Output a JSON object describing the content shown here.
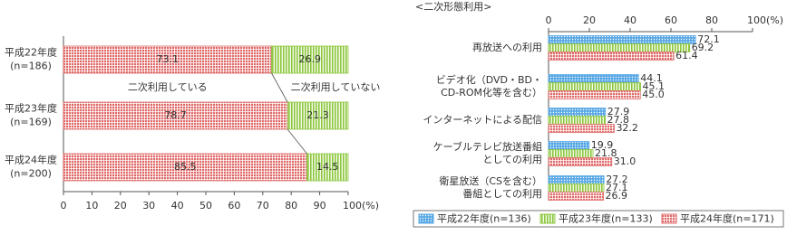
{
  "chart_data": [
    {
      "type": "stacked-bar",
      "categories": [
        [
          "平成22年度",
          "(n=186)"
        ],
        [
          "平成23年度",
          "(n=169)"
        ],
        [
          "平成24年度",
          "(n=200)"
        ]
      ],
      "series": [
        {
          "name": "二次利用している",
          "color": "#e06a6a",
          "pattern": "checks",
          "values": [
            73.1,
            78.7,
            85.5
          ]
        },
        {
          "name": "二次利用していない",
          "color": "#8cc63f",
          "pattern": "stripes",
          "values": [
            26.9,
            21.3,
            14.5
          ]
        }
      ],
      "xlim": [
        0,
        100
      ],
      "xticks": [
        0,
        10,
        20,
        30,
        40,
        50,
        60,
        70,
        80,
        90,
        {
          "value": 100,
          "label": "100(%)"
        }
      ]
    },
    {
      "type": "grouped-bar",
      "title": "<二次形態利用>",
      "categories": [
        [
          "再放送への利用"
        ],
        [
          "ビデオ化（DVD・BD・",
          "CD-ROM化等を含む）"
        ],
        [
          "インターネットによる配信"
        ],
        [
          "ケーブルテレビ放送番組",
          "としての利用"
        ],
        [
          "衛星放送（CSを含む）",
          "番組としての利用"
        ]
      ],
      "series": [
        {
          "name": "平成22年度(n=136)",
          "color": "#5aa9e6",
          "pattern": "dots",
          "values": [
            72.1,
            44.1,
            27.9,
            19.9,
            27.2
          ],
          "value_labels": [
            "72.1",
            "44.1",
            "27.9",
            "19.9",
            "27.2"
          ]
        },
        {
          "name": "平成23年度(n=133)",
          "color": "#8cc63f",
          "pattern": "stripes",
          "values": [
            69.2,
            45.1,
            27.8,
            21.8,
            27.1
          ],
          "value_labels": [
            "69.2",
            "45.1",
            "27.8",
            "21.8",
            "27.1"
          ]
        },
        {
          "name": "平成24年度(n=171)",
          "color": "#e06a6a",
          "pattern": "checks",
          "values": [
            61.4,
            45.0,
            32.2,
            31.0,
            26.9
          ],
          "value_labels": [
            "61.4",
            "45.0",
            "32.2",
            "31.0",
            "26.9"
          ]
        }
      ],
      "xlim": [
        0,
        100
      ],
      "xticks": [
        0,
        20,
        40,
        60,
        80,
        {
          "value": 100,
          "label": "100(%)"
        }
      ]
    }
  ]
}
